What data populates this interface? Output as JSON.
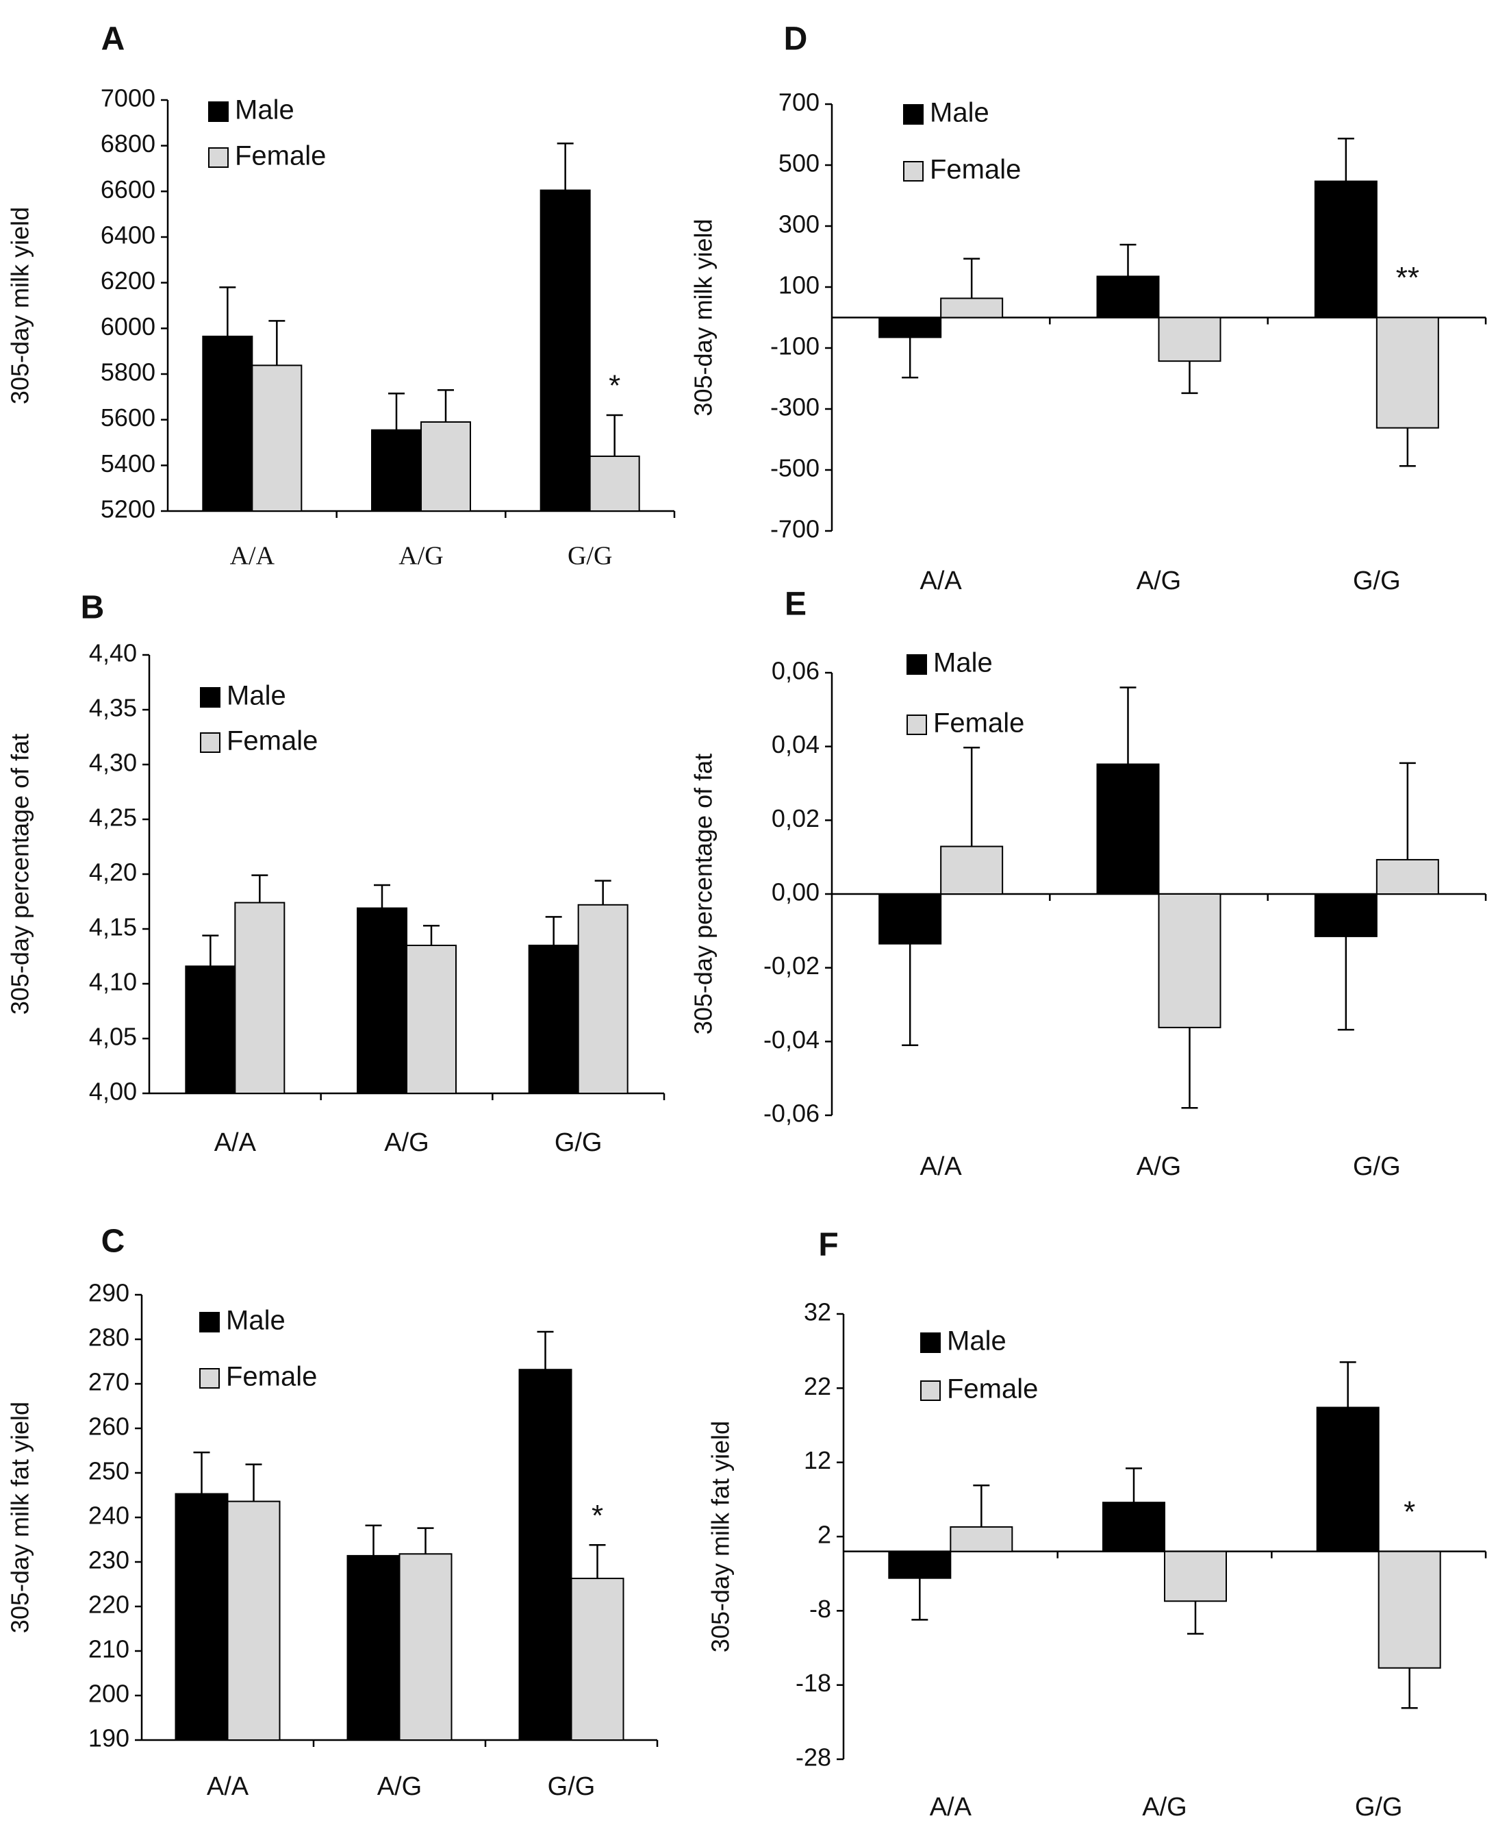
{
  "colors": {
    "male": "#000000",
    "female": "#d9d9d9",
    "axis": "#000000"
  },
  "legend": {
    "male": "Male",
    "female": "Female"
  },
  "chart_data": [
    {
      "id": "A",
      "type": "bar",
      "panel_label": "A",
      "title": "",
      "xlabel": "",
      "ylabel": "305-day milk yield",
      "categories": [
        "A/A",
        "A/G",
        "G/G"
      ],
      "ylim": [
        5200,
        7000
      ],
      "yticks": [
        "7000",
        "6800",
        "6600",
        "6400",
        "6200",
        "6000",
        "5800",
        "5600",
        "5400",
        "5200"
      ],
      "baseline": 5200,
      "series": [
        {
          "name": "Male",
          "values": [
            5965,
            5555,
            6605
          ],
          "errors": [
            215,
            160,
            205
          ]
        },
        {
          "name": "Female",
          "values": [
            5838,
            5590,
            5440
          ],
          "errors": [
            195,
            140,
            180
          ]
        }
      ],
      "annotations": [
        {
          "text": "*",
          "category": "G/G"
        }
      ]
    },
    {
      "id": "B",
      "type": "bar",
      "panel_label": "B",
      "title": "",
      "xlabel": "",
      "ylabel": "305-day percentage of fat",
      "categories": [
        "A/A",
        "A/G",
        "G/G"
      ],
      "ylim": [
        4.0,
        4.4
      ],
      "yticks": [
        "4,40",
        "4,35",
        "4,30",
        "4,25",
        "4,20",
        "4,15",
        "4,10",
        "4,05",
        "4,00"
      ],
      "baseline": 4.0,
      "series": [
        {
          "name": "Male",
          "values": [
            4.116,
            4.169,
            4.135
          ],
          "errors": [
            0.028,
            0.021,
            0.026
          ]
        },
        {
          "name": "Female",
          "values": [
            4.174,
            4.135,
            4.172
          ],
          "errors": [
            0.025,
            0.018,
            0.022
          ]
        }
      ],
      "annotations": []
    },
    {
      "id": "C",
      "type": "bar",
      "panel_label": "C",
      "title": "",
      "xlabel": "",
      "ylabel": "305-day milk fat yield",
      "categories": [
        "A/A",
        "A/G",
        "G/G"
      ],
      "ylim": [
        190,
        290
      ],
      "yticks": [
        "290",
        "280",
        "270",
        "260",
        "250",
        "240",
        "230",
        "220",
        "210",
        "200",
        "190"
      ],
      "baseline": 190,
      "series": [
        {
          "name": "Male",
          "values": [
            245.3,
            231.4,
            273.2
          ],
          "errors": [
            9.3,
            6.8,
            8.5
          ]
        },
        {
          "name": "Female",
          "values": [
            243.6,
            231.8,
            226.3
          ],
          "errors": [
            8.3,
            5.8,
            7.5
          ]
        }
      ],
      "annotations": [
        {
          "text": "*",
          "category": "G/G"
        }
      ]
    },
    {
      "id": "D",
      "type": "bar",
      "panel_label": "D",
      "title": "",
      "xlabel": "",
      "ylabel": "305-day milk yield",
      "categories": [
        "A/A",
        "A/G",
        "G/G"
      ],
      "ylim": [
        -700,
        700
      ],
      "yticks": [
        "700",
        "500",
        "300",
        "100",
        "-100",
        "-300",
        "-500",
        "-700"
      ],
      "baseline": 0,
      "series": [
        {
          "name": "Male",
          "values": [
            -65,
            135,
            447
          ],
          "errors": [
            132,
            104,
            140
          ]
        },
        {
          "name": "Female",
          "values": [
            63,
            -143,
            -362
          ],
          "errors": [
            130,
            105,
            125
          ]
        }
      ],
      "annotations": [
        {
          "text": "**",
          "category": "G/G"
        }
      ]
    },
    {
      "id": "E",
      "type": "bar",
      "panel_label": "E",
      "title": "",
      "xlabel": "",
      "ylabel": "305-day percentage of fat",
      "categories": [
        "A/A",
        "A/G",
        "G/G"
      ],
      "ylim": [
        -0.06,
        0.06
      ],
      "yticks": [
        "0,06",
        "0,04",
        "0,02",
        "0,00",
        "-0,02",
        "-0,04",
        "-0,06"
      ],
      "baseline": 0,
      "series": [
        {
          "name": "Male",
          "values": [
            -0.0135,
            0.0352,
            -0.0115
          ],
          "errors": [
            0.0275,
            0.0208,
            0.0253
          ]
        },
        {
          "name": "Female",
          "values": [
            0.0129,
            -0.0362,
            0.0093
          ],
          "errors": [
            0.0268,
            0.0218,
            0.0262
          ]
        }
      ],
      "annotations": []
    },
    {
      "id": "F",
      "type": "bar",
      "panel_label": "F",
      "title": "",
      "xlabel": "",
      "ylabel": "305-day milk fat yield",
      "categories": [
        "A/A",
        "A/G",
        "G/G"
      ],
      "ylim": [
        -28,
        32
      ],
      "yticks": [
        "32",
        "22",
        "12",
        "2",
        "-8",
        "-18",
        "-28"
      ],
      "baseline": 0,
      "series": [
        {
          "name": "Male",
          "values": [
            -3.6,
            6.6,
            19.4
          ],
          "errors": [
            5.6,
            4.6,
            6.1
          ]
        },
        {
          "name": "Female",
          "values": [
            3.3,
            -6.7,
            -15.7
          ],
          "errors": [
            5.6,
            4.4,
            5.4
          ]
        }
      ],
      "annotations": [
        {
          "text": "*",
          "category": "G/G"
        }
      ]
    }
  ]
}
